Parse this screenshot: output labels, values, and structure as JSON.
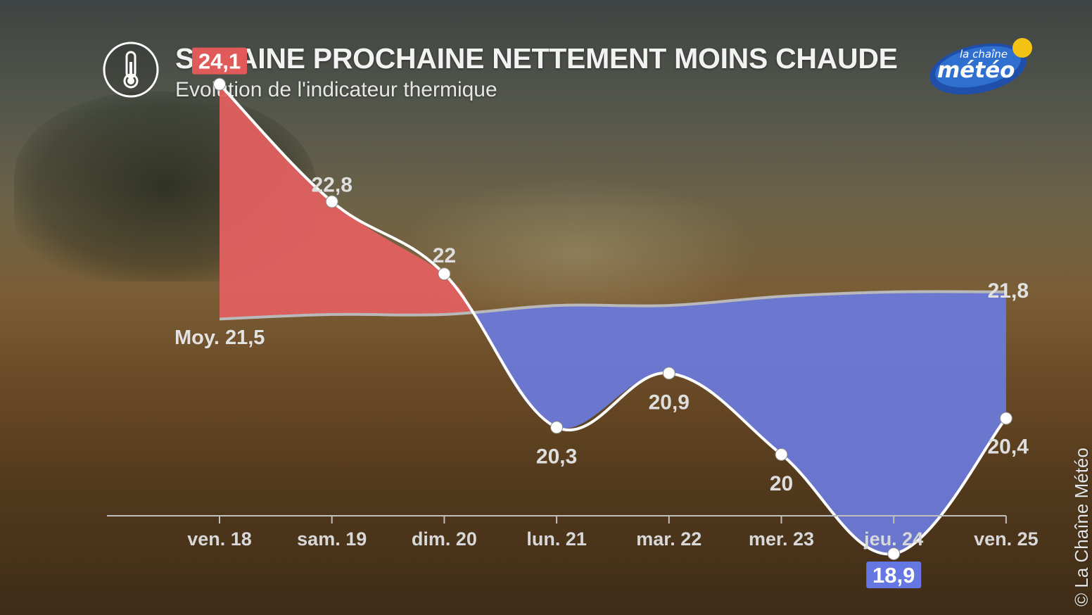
{
  "header": {
    "title": "SEMAINE PROCHAINE NETTEMENT MOINS CHAUDE",
    "subtitle": "Evolution de l'indicateur thermique",
    "icon": "thermometer-icon"
  },
  "logo": {
    "line1": "la chaîne",
    "line2": "météo"
  },
  "copyright": "© La Chaîne Météo",
  "chart_data": {
    "type": "area",
    "categories": [
      "ven. 18",
      "sam. 19",
      "dim. 20",
      "lun. 21",
      "mar. 22",
      "mer. 23",
      "jeu. 24",
      "ven. 25"
    ],
    "series": [
      {
        "values": [
          24.1,
          22.8,
          22,
          20.3,
          20.9,
          20,
          18.9,
          20.4
        ]
      },
      {
        "values": [
          21.5,
          21.55,
          21.55,
          21.65,
          21.65,
          21.75,
          21.8,
          21.8
        ]
      }
    ],
    "value_labels": [
      "24,1",
      "22,8",
      "22",
      "20,3",
      "20,9",
      "20",
      "18,9",
      "20,4"
    ],
    "average_labels": {
      "start": "Moy. 21,5",
      "end": "21,8"
    },
    "ylim": [
      18.5,
      24.5
    ],
    "colors": {
      "above_average": "#e06060",
      "below_average": "#6b79d8",
      "line": "#ffffff",
      "average_line": "#b9b9b9",
      "max_badge": "#e15a5a",
      "min_badge": "#6676e2"
    },
    "grid": false
  }
}
